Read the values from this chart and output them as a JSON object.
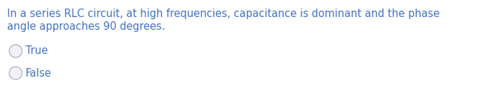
{
  "question_line1": "In a series RLC circuit, at high frequencies, capacitance is dominant and the phase",
  "question_line2": "angle approaches 90 degrees.",
  "option1": "True",
  "option2": "False",
  "text_color": "#4472C4",
  "bg_color": "#ffffff",
  "question_fontsize": 10.5,
  "option_fontsize": 10.5,
  "circle_edge_color": "#b0b8c8",
  "circle_face_color": "#f0f2f8"
}
